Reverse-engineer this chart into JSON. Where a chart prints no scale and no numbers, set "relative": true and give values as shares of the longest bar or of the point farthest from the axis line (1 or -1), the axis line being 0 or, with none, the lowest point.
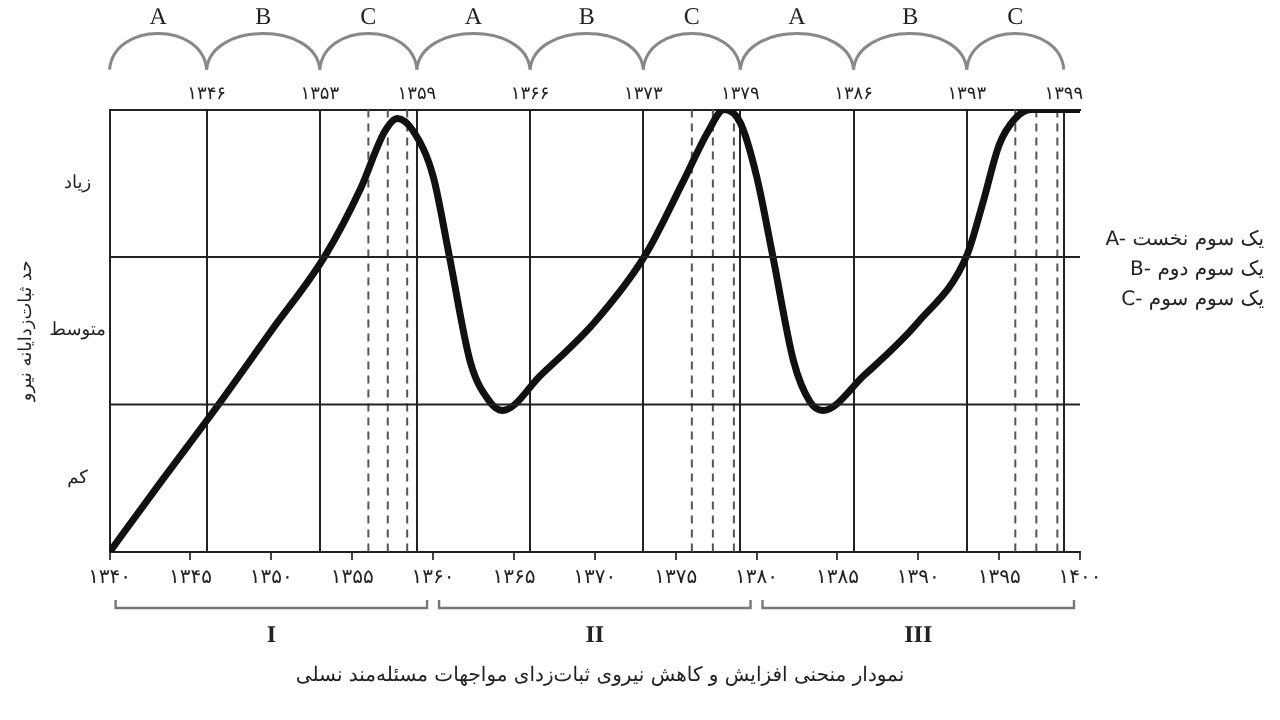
{
  "chart_data": {
    "type": "line",
    "title": "نمودار منحنی افزایش و کاهش نیروی ثبات‌زدای مواجهات مسئله‌مند نسلی",
    "ylabel": "حد ثبات‌زدایانه نیرو",
    "x": [
      1340,
      1343,
      1346.67,
      1350,
      1353.33,
      1355.5,
      1357,
      1357.8,
      1358.8,
      1360,
      1361,
      1362.3,
      1363.5,
      1364.3,
      1366.67,
      1370,
      1373.1,
      1375.5,
      1377,
      1378,
      1379,
      1380,
      1381,
      1382.3,
      1383.3,
      1384.1,
      1386.67,
      1390,
      1393,
      1394,
      1395,
      1396,
      1397,
      1400
    ],
    "series": [
      {
        "color": "#111111",
        "values": [
          0,
          0.15,
          0.33,
          0.5,
          0.67,
          0.82,
          0.95,
          0.98,
          0.95,
          0.85,
          0.67,
          0.43,
          0.34,
          0.32,
          0.4,
          0.52,
          0.67,
          0.84,
          0.95,
          1,
          0.97,
          0.85,
          0.67,
          0.43,
          0.34,
          0.32,
          0.4,
          0.52,
          0.67,
          0.79,
          0.92,
          0.98,
          1,
          1
        ]
      }
    ],
    "relative": true,
    "xlim": [
      1340,
      1400
    ],
    "xticks": [
      {
        "value": 1340,
        "label": "۱۳۴۰"
      },
      {
        "value": 1345,
        "label": "۱۳۴۵"
      },
      {
        "value": 1350,
        "label": "۱۳۵۰"
      },
      {
        "value": 1355,
        "label": "۱۳۵۵"
      },
      {
        "value": 1360,
        "label": "۱۳۶۰"
      },
      {
        "value": 1365,
        "label": "۱۳۶۵"
      },
      {
        "value": 1370,
        "label": "۱۳۷۰"
      },
      {
        "value": 1375,
        "label": "۱۳۷۵"
      },
      {
        "value": 1380,
        "label": "۱۳۸۰"
      },
      {
        "value": 1385,
        "label": "۱۳۸۵"
      },
      {
        "value": 1390,
        "label": "۱۳۹۰"
      },
      {
        "value": 1395,
        "label": "۱۳۹۵"
      },
      {
        "value": 1400,
        "label": "۱۴۰۰"
      }
    ],
    "x2lim": [
      1340,
      1400
    ],
    "x2ticks": [
      {
        "value": 1346,
        "label": "۱۳۴۶"
      },
      {
        "value": 1353,
        "label": "۱۳۵۳"
      },
      {
        "value": 1359,
        "label": "۱۳۵۹"
      },
      {
        "value": 1366,
        "label": "۱۳۶۶"
      },
      {
        "value": 1373,
        "label": "۱۳۷۳"
      },
      {
        "value": 1379,
        "label": "۱۳۷۹"
      },
      {
        "value": 1386,
        "label": "۱۳۸۶"
      },
      {
        "value": 1393,
        "label": "۱۳۹۳"
      },
      {
        "value": 1399,
        "label": "۱۳۹۹"
      }
    ],
    "grid": true,
    "marker": "none",
    "line_style": "solid",
    "ref_lines": [
      {
        "axis": "x",
        "value": 1356,
        "line_style": "dashed",
        "color": "#555555"
      },
      {
        "axis": "x",
        "value": 1357.2,
        "line_style": "dashed",
        "color": "#555555"
      },
      {
        "axis": "x",
        "value": 1358.4,
        "line_style": "dashed",
        "color": "#555555"
      },
      {
        "axis": "x",
        "value": 1376,
        "line_style": "dashed",
        "color": "#555555"
      },
      {
        "axis": "x",
        "value": 1377.3,
        "line_style": "dashed",
        "color": "#555555"
      },
      {
        "axis": "x",
        "value": 1378.6,
        "line_style": "dashed",
        "color": "#555555"
      },
      {
        "axis": "x",
        "value": 1396,
        "line_style": "dashed",
        "color": "#555555"
      },
      {
        "axis": "x",
        "value": 1397.3,
        "line_style": "dashed",
        "color": "#555555"
      },
      {
        "axis": "x",
        "value": 1398.6,
        "line_style": "dashed",
        "color": "#555555"
      }
    ],
    "annotations": [
      "A",
      "B",
      "C",
      "A",
      "B",
      "C",
      "A",
      "B",
      "C",
      "I",
      "II",
      "III",
      "کم",
      "متوسط",
      "زیاد",
      "A- یک سوم نخست",
      "B- یک سوم دوم",
      "C- یک سوم سوم"
    ]
  }
}
